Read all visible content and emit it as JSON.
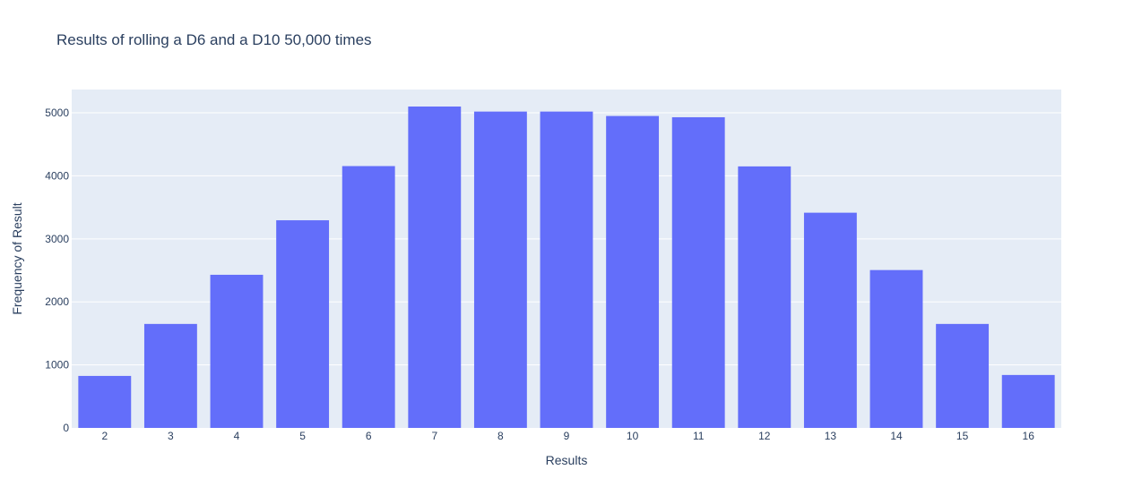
{
  "chart_data": {
    "type": "bar",
    "title": "Results of rolling a D6 and a D10 50,000 times",
    "xlabel": "Results",
    "ylabel": "Frequency of Result",
    "categories": [
      "2",
      "3",
      "4",
      "5",
      "6",
      "7",
      "8",
      "9",
      "10",
      "11",
      "12",
      "13",
      "14",
      "15",
      "16"
    ],
    "values": [
      825,
      1650,
      2430,
      3295,
      4155,
      5100,
      5020,
      5020,
      4950,
      4930,
      4150,
      3415,
      2505,
      1650,
      840
    ],
    "ylim": [
      0,
      5370
    ],
    "yticks": [
      0,
      1000,
      2000,
      3000,
      4000,
      5000
    ],
    "grid": true,
    "legend": "none",
    "colors": {
      "bar": "#636efa",
      "plot_background": "#e5ecf6",
      "gridline": "#ffffff",
      "text": "#2a3f5f"
    }
  }
}
